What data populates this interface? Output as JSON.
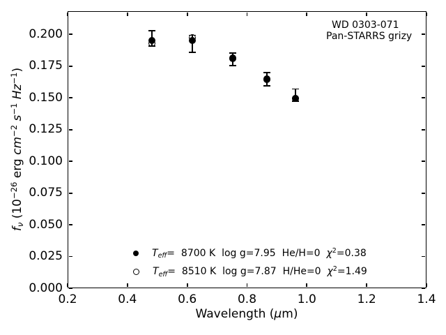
{
  "figure": {
    "background": "#ffffff",
    "foreground": "#000000"
  },
  "annotation": {
    "line1": "WD 0303-071",
    "line2": "Pan-STARRS grizy"
  },
  "labels": {
    "ylabel_runs": [
      {
        "t": "f",
        "i": true
      },
      {
        "t": "ν",
        "i": true,
        "sub": true
      },
      {
        "t": " (10"
      },
      {
        "t": "−26",
        "sup": true
      },
      {
        "t": " erg "
      },
      {
        "t": "cm",
        "i": true
      },
      {
        "t": "−2",
        "sup": true
      },
      {
        "t": " "
      },
      {
        "t": "s",
        "i": true
      },
      {
        "t": "−1",
        "sup": true
      },
      {
        "t": " "
      },
      {
        "t": "Hz",
        "i": true
      },
      {
        "t": "−1",
        "sup": true
      },
      {
        "t": ")"
      }
    ],
    "xlabel_runs": [
      {
        "t": "Wavelength ("
      },
      {
        "t": "μ",
        "i": true
      },
      {
        "t": "m)"
      }
    ]
  },
  "legend": {
    "rows": [
      {
        "marker": "filled-circle",
        "runs": [
          {
            "t": "T",
            "i": true
          },
          {
            "t": "eff",
            "i": true,
            "sub": true
          },
          {
            "t": "=  8700 K  log g=7.95  He/H=0  "
          },
          {
            "t": "χ",
            "i": true
          },
          {
            "t": "2",
            "sup": true
          },
          {
            "t": "=0.38"
          }
        ]
      },
      {
        "marker": "open-circle",
        "runs": [
          {
            "t": "T",
            "i": true
          },
          {
            "t": "eff",
            "i": true,
            "sub": true
          },
          {
            "t": "=  8510 K  log g=7.87  H/He=0  "
          },
          {
            "t": "χ",
            "i": true
          },
          {
            "t": "2",
            "sup": true
          },
          {
            "t": "=1.49"
          }
        ]
      }
    ]
  },
  "chart_data": {
    "type": "scatter",
    "title": "",
    "xlabel": "Wavelength (μm)",
    "ylabel": "f_ν (10^−26 erg cm^−2 s^−1 Hz^−1)",
    "xlim": [
      0.2,
      1.4
    ],
    "ylim": [
      0.0,
      0.2183
    ],
    "grid": false,
    "legend_position": "lower center",
    "annotations": [
      "WD 0303-071",
      "Pan-STARRS grizy"
    ],
    "x_ticks": [
      0.2,
      0.4,
      0.6,
      0.8,
      1.0,
      1.2,
      1.4
    ],
    "x_tick_labels": [
      "0.2",
      "0.4",
      "0.6",
      "0.8",
      "1.0",
      "1.2",
      "1.4"
    ],
    "y_ticks": [
      0.0,
      0.025,
      0.05,
      0.075,
      0.1,
      0.125,
      0.15,
      0.175,
      0.2
    ],
    "y_tick_labels": [
      "0.000",
      "0.025",
      "0.050",
      "0.075",
      "0.100",
      "0.125",
      "0.150",
      "0.175",
      "0.200"
    ],
    "x": [
      0.481,
      0.617,
      0.752,
      0.866,
      0.962
    ],
    "series": [
      {
        "name": "Pan-STARRS grizy photometry",
        "marker": "errorbar",
        "y": [
          0.197,
          0.1926,
          0.1804,
          0.1646,
          0.1522
        ],
        "yerr": [
          0.006,
          0.0067,
          0.0051,
          0.0052,
          0.0048
        ]
      },
      {
        "name": "Teff= 8700 K  log g=7.95  He/H=0  χ2=0.38",
        "marker": "filled-circle",
        "y": [
          0.195,
          0.195,
          0.1812,
          0.1648,
          0.1498
        ]
      },
      {
        "name": "Teff= 8510 K  log g=7.87  H/He=0  χ2=1.49",
        "marker": "open-circle",
        "y": [
          0.1932,
          0.1975,
          0.181,
          0.1645,
          0.1493
        ]
      }
    ],
    "colors": {
      "markers": "#000000",
      "background": "#ffffff"
    }
  }
}
